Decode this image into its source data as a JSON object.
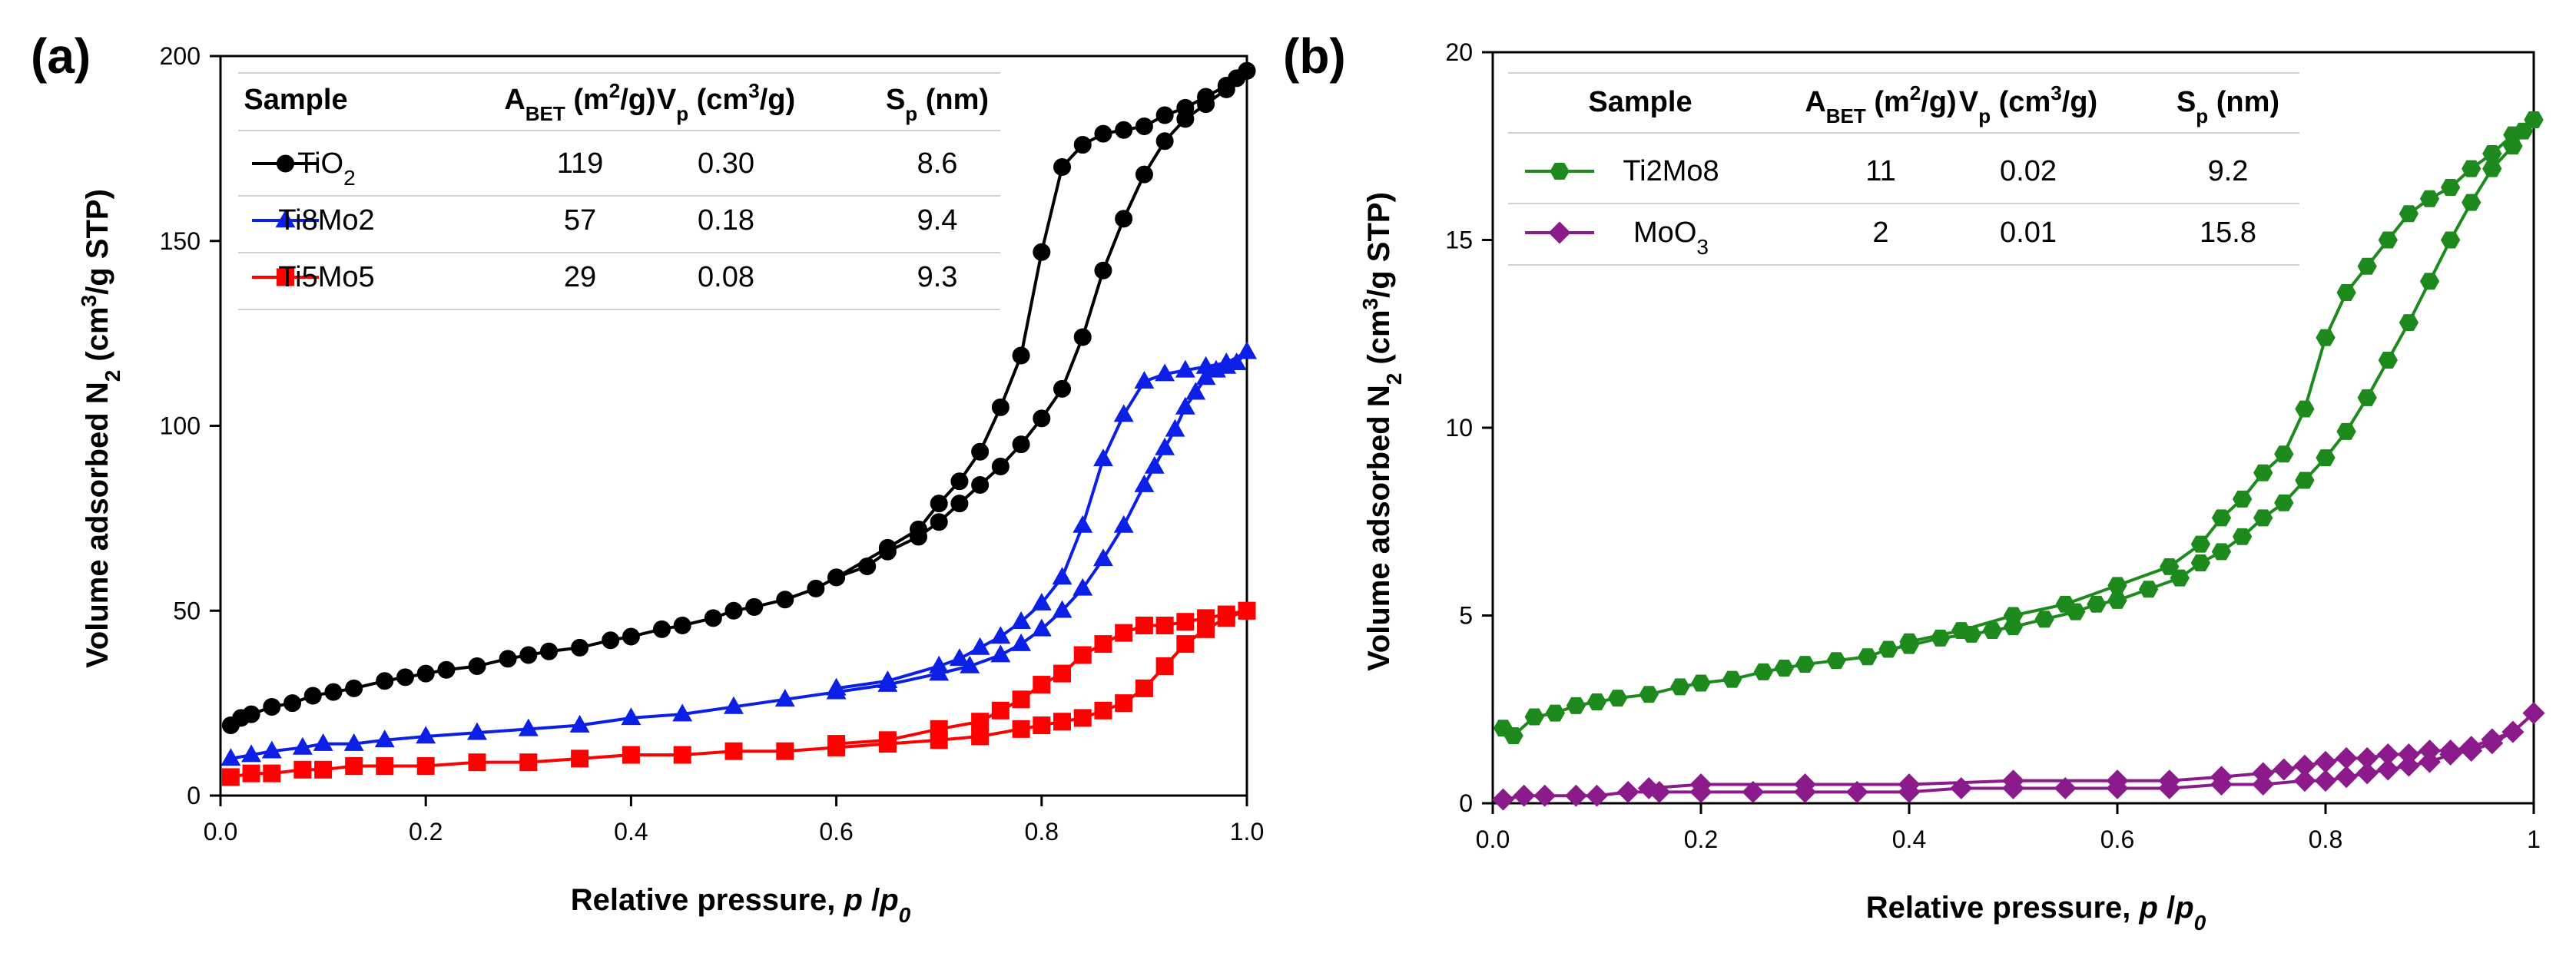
{
  "chart_data": [
    {
      "type": "line",
      "panel": "(a)",
      "xlabel_main": "Relative pressure, ",
      "xlabel_italic_p": "p",
      "xlabel_slash": " /",
      "xlabel_italic_p0": "p",
      "xlabel_sub0": "0",
      "ylabel_a": "Volume adsorbed N",
      "ylabel_sub": "2",
      "ylabel_b": " (cm",
      "ylabel_sup": "3",
      "ylabel_c": "/g STP)",
      "xlim": [
        0,
        1.0
      ],
      "ylim": [
        0,
        200
      ],
      "xticks": [
        "0.0",
        "0.2",
        "0.4",
        "0.6",
        "0.8",
        "1.0"
      ],
      "yticks": [
        "0",
        "50",
        "100",
        "150",
        "200"
      ],
      "table": {
        "headers": {
          "sample": "Sample",
          "abet_main": "A",
          "abet_sub": "BET",
          "abet_unit": " (m",
          "abet_sup": "2",
          "abet_end": "/g)",
          "vp_main": "V",
          "vp_sub": "p",
          "vp_unit": " (cm",
          "vp_sup": "3",
          "vp_end": "/g)",
          "sp_main": "S",
          "sp_sub": "p",
          "sp_end": " (nm)"
        },
        "rows": [
          {
            "name_main": "TiO",
            "name_sub": "2",
            "abet": "119",
            "vp": "0.30",
            "sp": "8.6"
          },
          {
            "name_main": "Ti8Mo2",
            "name_sub": "",
            "abet": "57",
            "vp": "0.18",
            "sp": "9.4"
          },
          {
            "name_main": "Ti5Mo5",
            "name_sub": "",
            "abet": "29",
            "vp": "0.08",
            "sp": "9.3"
          }
        ]
      },
      "series": [
        {
          "name": "TiO2",
          "color": "#000000",
          "marker": "circle",
          "adsorption": {
            "x": [
              0.01,
              0.02,
              0.03,
              0.05,
              0.07,
              0.09,
              0.11,
              0.13,
              0.16,
              0.18,
              0.2,
              0.22,
              0.25,
              0.28,
              0.3,
              0.32,
              0.35,
              0.38,
              0.4,
              0.43,
              0.45,
              0.48,
              0.5,
              0.52,
              0.55,
              0.58,
              0.6,
              0.63,
              0.65,
              0.68,
              0.7,
              0.72,
              0.74,
              0.76,
              0.78,
              0.8,
              0.82,
              0.84,
              0.86,
              0.88,
              0.9,
              0.92,
              0.94,
              0.96,
              0.98,
              0.99,
              1.0
            ],
            "y": [
              19,
              21,
              22,
              24,
              25,
              27,
              28,
              29,
              31,
              32,
              33,
              34,
              35,
              37,
              38,
              39,
              40,
              42,
              43,
              45,
              46,
              48,
              50,
              51,
              53,
              56,
              59,
              62,
              66,
              70,
              74,
              79,
              84,
              89,
              95,
              102,
              110,
              124,
              142,
              156,
              168,
              177,
              183,
              187,
              191,
              194,
              196
            ]
          },
          "desorption": {
            "x": [
              1.0,
              0.98,
              0.96,
              0.94,
              0.92,
              0.9,
              0.88,
              0.86,
              0.84,
              0.82,
              0.8,
              0.78,
              0.76,
              0.74,
              0.72,
              0.7,
              0.68,
              0.65,
              0.6
            ],
            "y": [
              196,
              192,
              189,
              186,
              184,
              181,
              180,
              179,
              176,
              170,
              147,
              119,
              105,
              93,
              85,
              79,
              72,
              67,
              59
            ]
          }
        },
        {
          "name": "Ti8Mo2",
          "color": "#0b1fe6",
          "marker": "triangle",
          "adsorption": {
            "x": [
              0.01,
              0.03,
              0.05,
              0.08,
              0.1,
              0.13,
              0.16,
              0.2,
              0.25,
              0.3,
              0.35,
              0.4,
              0.45,
              0.5,
              0.55,
              0.6,
              0.65,
              0.7,
              0.73,
              0.76,
              0.78,
              0.8,
              0.82,
              0.84,
              0.86,
              0.88,
              0.9,
              0.91,
              0.92,
              0.93,
              0.94,
              0.95,
              0.96,
              0.97,
              0.98,
              0.99,
              1.0
            ],
            "y": [
              10,
              11,
              12,
              13,
              14,
              14,
              15,
              16,
              17,
              18,
              19,
              21,
              22,
              24,
              26,
              28,
              30,
              33,
              35,
              38,
              41,
              45,
              50,
              56,
              64,
              73,
              84,
              89,
              94,
              99,
              105,
              109,
              113,
              115,
              116,
              117,
              120
            ]
          },
          "desorption": {
            "x": [
              1.0,
              0.98,
              0.96,
              0.94,
              0.92,
              0.9,
              0.88,
              0.86,
              0.84,
              0.82,
              0.8,
              0.78,
              0.76,
              0.74,
              0.72,
              0.7,
              0.65,
              0.6
            ],
            "y": [
              120,
              117,
              116,
              115,
              114,
              112,
              103,
              91,
              73,
              59,
              52,
              47,
              43,
              40,
              37,
              35,
              31,
              29
            ]
          }
        },
        {
          "name": "Ti5Mo5",
          "color": "#ff0000",
          "marker": "square",
          "adsorption": {
            "x": [
              0.01,
              0.03,
              0.05,
              0.08,
              0.1,
              0.13,
              0.16,
              0.2,
              0.25,
              0.3,
              0.35,
              0.4,
              0.45,
              0.5,
              0.55,
              0.6,
              0.65,
              0.7,
              0.74,
              0.78,
              0.8,
              0.82,
              0.84,
              0.86,
              0.88,
              0.9,
              0.92,
              0.94,
              0.96,
              0.98,
              1.0
            ],
            "y": [
              5,
              6,
              6,
              7,
              7,
              8,
              8,
              8,
              9,
              9,
              10,
              11,
              11,
              12,
              12,
              13,
              14,
              15,
              16,
              18,
              19,
              20,
              21,
              23,
              25,
              29,
              35,
              41,
              45,
              48,
              50
            ]
          },
          "desorption": {
            "x": [
              1.0,
              0.98,
              0.96,
              0.94,
              0.92,
              0.9,
              0.88,
              0.86,
              0.84,
              0.82,
              0.8,
              0.78,
              0.76,
              0.74,
              0.7,
              0.65,
              0.6
            ],
            "y": [
              50,
              49,
              48,
              47,
              46,
              46,
              44,
              41,
              38,
              33,
              30,
              26,
              23,
              20,
              18,
              15,
              14
            ]
          }
        }
      ]
    },
    {
      "type": "line",
      "panel": "(b)",
      "xlabel_main": "Relative pressure, ",
      "xlabel_italic_p": "p",
      "xlabel_slash": " /",
      "xlabel_italic_p0": "p",
      "xlabel_sub0": "0",
      "ylabel_a": "Volume adsorbed N",
      "ylabel_sub": "2",
      "ylabel_b": " (cm",
      "ylabel_sup": "3",
      "ylabel_c": "/g STP)",
      "xlim": [
        0,
        1
      ],
      "ylim": [
        0,
        20
      ],
      "xticks": [
        "0.0",
        "0.2",
        "0.4",
        "0.6",
        "0.8",
        "1"
      ],
      "yticks": [
        "0",
        "5",
        "10",
        "15",
        "20"
      ],
      "table": {
        "headers": {
          "sample": "Sample",
          "abet_main": "A",
          "abet_sub": "BET",
          "abet_unit": " (m",
          "abet_sup": "2",
          "abet_end": "/g)",
          "vp_main": "V",
          "vp_sub": "p",
          "vp_unit": " (cm",
          "vp_sup": "3",
          "vp_end": "/g)",
          "sp_main": "S",
          "sp_sub": "p",
          "sp_end": " (nm)"
        },
        "rows": [
          {
            "name_main": "Ti2Mo8",
            "name_sub": "",
            "abet": "11",
            "vp": "0.02",
            "sp": "9.2"
          },
          {
            "name_main": "MoO",
            "name_sub": "3",
            "abet": "2",
            "vp": "0.01",
            "sp": "15.8"
          }
        ]
      },
      "series": [
        {
          "name": "Ti2Mo8",
          "color": "#1e8a1e",
          "marker": "hexagon",
          "adsorption": {
            "x": [
              0.01,
              0.02,
              0.04,
              0.06,
              0.08,
              0.1,
              0.12,
              0.15,
              0.18,
              0.2,
              0.23,
              0.26,
              0.28,
              0.3,
              0.33,
              0.36,
              0.38,
              0.4,
              0.43,
              0.46,
              0.48,
              0.5,
              0.53,
              0.56,
              0.58,
              0.6,
              0.63,
              0.66,
              0.68,
              0.7,
              0.72,
              0.74,
              0.76,
              0.78,
              0.8,
              0.82,
              0.84,
              0.86,
              0.88,
              0.9,
              0.92,
              0.94,
              0.96,
              0.98,
              0.99,
              1.0
            ],
            "y": [
              2.0,
              1.8,
              2.3,
              2.4,
              2.6,
              2.7,
              2.8,
              2.9,
              3.1,
              3.2,
              3.3,
              3.5,
              3.6,
              3.7,
              3.8,
              3.9,
              4.1,
              4.2,
              4.4,
              4.5,
              4.6,
              4.7,
              4.9,
              5.1,
              5.3,
              5.4,
              5.7,
              6.0,
              6.4,
              6.7,
              7.1,
              7.6,
              8.0,
              8.6,
              9.2,
              9.9,
              10.8,
              11.8,
              12.8,
              13.9,
              15.0,
              16.0,
              16.9,
              17.5,
              17.9,
              18.2
            ]
          },
          "desorption": {
            "x": [
              1.0,
              0.98,
              0.96,
              0.94,
              0.92,
              0.9,
              0.88,
              0.86,
              0.84,
              0.82,
              0.8,
              0.78,
              0.76,
              0.74,
              0.72,
              0.7,
              0.68,
              0.65,
              0.6,
              0.55,
              0.5,
              0.45,
              0.4
            ],
            "y": [
              18.2,
              17.8,
              17.3,
              16.9,
              16.4,
              16.1,
              15.7,
              15.0,
              14.3,
              13.6,
              12.4,
              10.5,
              9.3,
              8.8,
              8.1,
              7.6,
              6.9,
              6.3,
              5.8,
              5.3,
              5.0,
              4.6,
              4.3
            ]
          }
        },
        {
          "name": "MoO3",
          "color": "#8b1a8b",
          "marker": "diamond",
          "adsorption": {
            "x": [
              0.01,
              0.03,
              0.05,
              0.08,
              0.1,
              0.13,
              0.16,
              0.2,
              0.25,
              0.3,
              0.35,
              0.4,
              0.45,
              0.5,
              0.55,
              0.6,
              0.65,
              0.7,
              0.74,
              0.78,
              0.8,
              0.82,
              0.84,
              0.86,
              0.88,
              0.9,
              0.92,
              0.94,
              0.96,
              0.98,
              1.0
            ],
            "y": [
              0.1,
              0.2,
              0.2,
              0.2,
              0.2,
              0.3,
              0.3,
              0.3,
              0.3,
              0.3,
              0.3,
              0.3,
              0.4,
              0.4,
              0.4,
              0.4,
              0.4,
              0.5,
              0.5,
              0.6,
              0.6,
              0.7,
              0.8,
              0.9,
              1.0,
              1.1,
              1.3,
              1.4,
              1.6,
              1.9,
              2.4
            ]
          },
          "desorption": {
            "x": [
              1.0,
              0.98,
              0.96,
              0.94,
              0.92,
              0.9,
              0.88,
              0.86,
              0.84,
              0.82,
              0.8,
              0.78,
              0.76,
              0.74,
              0.7,
              0.65,
              0.6,
              0.5,
              0.4,
              0.3,
              0.2,
              0.15
            ],
            "y": [
              2.4,
              1.9,
              1.7,
              1.5,
              1.4,
              1.4,
              1.3,
              1.3,
              1.2,
              1.2,
              1.1,
              1.0,
              0.9,
              0.8,
              0.7,
              0.6,
              0.6,
              0.6,
              0.5,
              0.5,
              0.5,
              0.4
            ]
          }
        }
      ]
    }
  ]
}
